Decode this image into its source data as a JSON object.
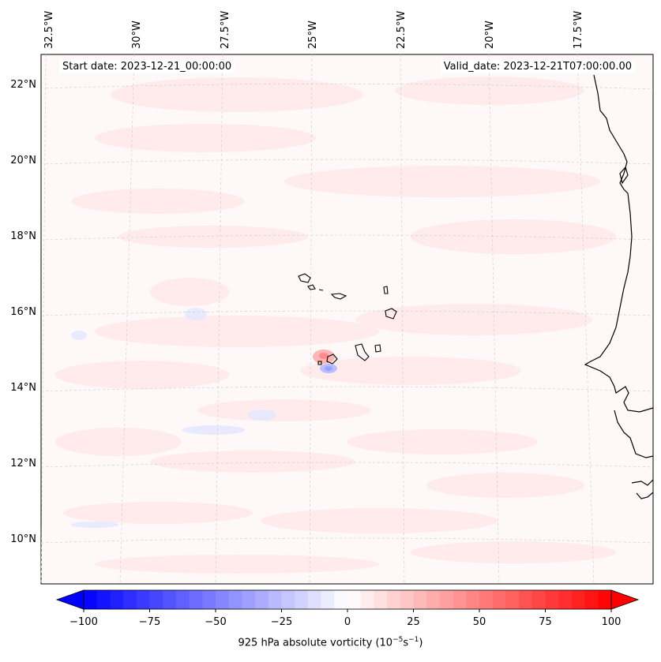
{
  "header": {
    "start_date": "Start date: 2023-12-21_00:00:00",
    "valid_date": "Valid_date: 2023-12-21T07:00:00.00"
  },
  "longitude_labels": [
    "32.5°W",
    "30°W",
    "27.5°W",
    "25°W",
    "22.5°W",
    "20°W",
    "17.5°W"
  ],
  "latitude_labels": [
    "22°N",
    "20°N",
    "18°N",
    "16°N",
    "14°N",
    "12°N",
    "10°N"
  ],
  "colorbar": {
    "ticks": [
      "−100",
      "−75",
      "−50",
      "−25",
      "0",
      "25",
      "50",
      "75",
      "100"
    ],
    "min": -100,
    "max": 100,
    "levels": 40,
    "title_prefix": "925 hPa absolute vorticity (10",
    "title_exp1": "−5",
    "title_mid": "s",
    "title_exp2": "−1",
    "title_suffix": ")"
  },
  "colors": {
    "negative": "#0000ff",
    "neutral": "#ffffff",
    "positive": "#ff0000",
    "coastline": "#000000",
    "gridline": "#bbbbbb"
  }
}
